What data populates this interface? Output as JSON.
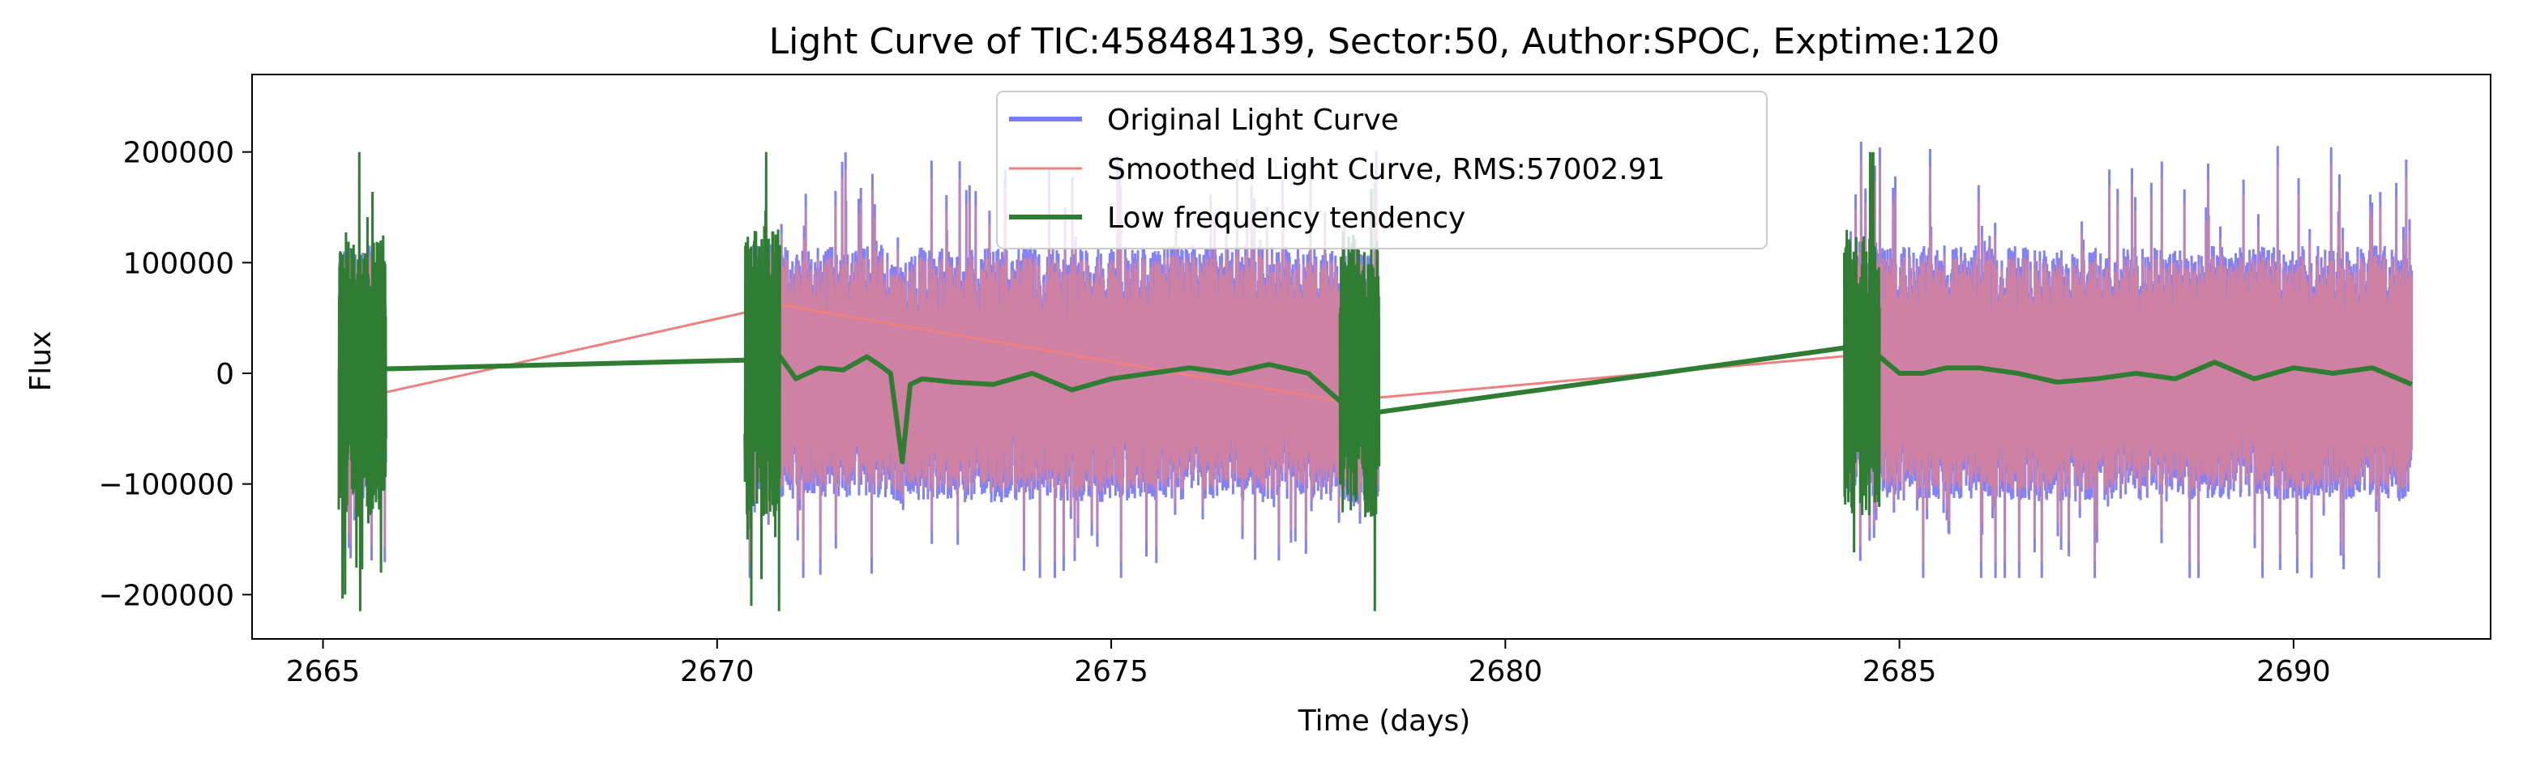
{
  "chart_data": {
    "type": "line",
    "title": "Light Curve of TIC:458484139, Sector:50, Author:SPOC, Exptime:120",
    "xlabel": "Time (days)",
    "ylabel": "Flux",
    "xlim": [
      2664.1,
      2692.5
    ],
    "ylim": [
      -240000,
      270000
    ],
    "xticks": [
      2665,
      2670,
      2675,
      2680,
      2685,
      2690
    ],
    "xtick_labels": [
      "2665",
      "2670",
      "2675",
      "2680",
      "2685",
      "2690"
    ],
    "yticks": [
      -200000,
      -100000,
      0,
      100000,
      200000
    ],
    "ytick_labels": [
      "−200000",
      "−100000",
      "0",
      "100000",
      "200000"
    ],
    "grid": false,
    "legend_position": "top-center",
    "segments": [
      [
        2665.2,
        2665.8
      ],
      [
        2670.4,
        2678.4
      ],
      [
        2684.3,
        2691.5
      ]
    ],
    "series": [
      {
        "name": "Original Light Curve",
        "color": "#7b7bf5",
        "style": "dense oscillating line",
        "typical_amplitude": 100000,
        "min": -185000,
        "max": 248000
      },
      {
        "name": "Smoothed Light Curve, RMS:57002.91",
        "color": "#f08080",
        "style": "dense oscillating line",
        "rms": 57002.91,
        "connector_points": [
          [
            2665.3,
            -25000
          ],
          [
            2670.8,
            62000
          ],
          [
            2677.9,
            -25000
          ],
          [
            2684.7,
            18000
          ]
        ]
      },
      {
        "name": "Low frequency tendency",
        "color": "#2e7d32",
        "style": "thick trend line",
        "points": [
          [
            2665.25,
            20000
          ],
          [
            2665.3,
            5000
          ],
          [
            2665.8,
            4000
          ],
          [
            2670.4,
            12000
          ],
          [
            2670.8,
            15000
          ],
          [
            2671.0,
            -5000
          ],
          [
            2671.3,
            5000
          ],
          [
            2671.6,
            3000
          ],
          [
            2671.9,
            15000
          ],
          [
            2672.05,
            8000
          ],
          [
            2672.2,
            0
          ],
          [
            2672.35,
            -80000
          ],
          [
            2672.45,
            -10000
          ],
          [
            2672.6,
            -5000
          ],
          [
            2673.0,
            -8000
          ],
          [
            2673.5,
            -10000
          ],
          [
            2674.0,
            0
          ],
          [
            2674.5,
            -15000
          ],
          [
            2675.0,
            -5000
          ],
          [
            2675.5,
            0
          ],
          [
            2676.0,
            5000
          ],
          [
            2676.5,
            0
          ],
          [
            2677.0,
            8000
          ],
          [
            2677.5,
            0
          ],
          [
            2677.9,
            -25000
          ],
          [
            2678.3,
            -30000
          ],
          [
            2678.4,
            -35000
          ],
          [
            2684.3,
            23000
          ],
          [
            2684.7,
            18000
          ],
          [
            2685.0,
            0
          ],
          [
            2685.3,
            0
          ],
          [
            2685.6,
            5000
          ],
          [
            2686.0,
            5000
          ],
          [
            2686.5,
            0
          ],
          [
            2687.0,
            -8000
          ],
          [
            2687.5,
            -5000
          ],
          [
            2688.0,
            0
          ],
          [
            2688.5,
            -5000
          ],
          [
            2689.0,
            10000
          ],
          [
            2689.5,
            -5000
          ],
          [
            2690.0,
            5000
          ],
          [
            2690.5,
            0
          ],
          [
            2691.0,
            5000
          ],
          [
            2691.5,
            -10000
          ]
        ]
      }
    ]
  }
}
